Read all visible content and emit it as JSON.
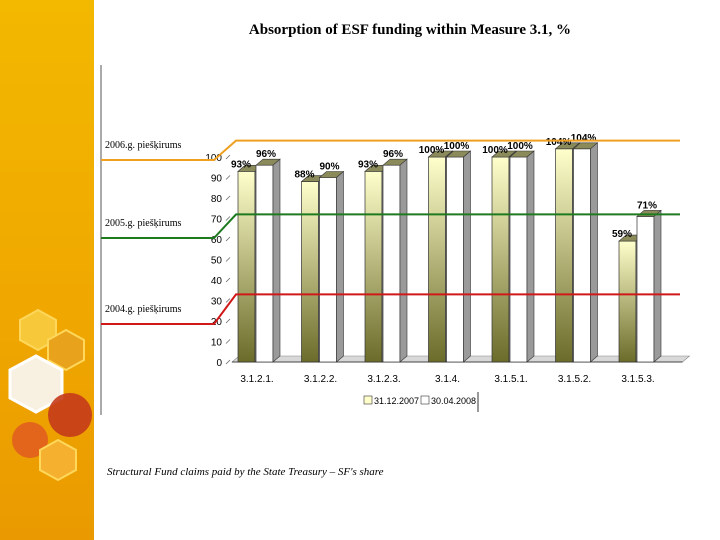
{
  "colors": {
    "band": "#f0aa00",
    "line_2006": "#f0a020",
    "line_2005": "#1e7a1e",
    "line_2004": "#d01818",
    "series_a_top": "#ffffcc",
    "series_a_bottom": "#6b6b2a",
    "series_b": "#ffffff"
  },
  "chart_data": {
    "type": "bar",
    "title": "Absorption of ESF funding within Measure 3.1, %",
    "categories": [
      "3.1.2.1.",
      "3.1.2.2.",
      "3.1.2.3.",
      "3.1.4.",
      "3.1.5.1.",
      "3.1.5.2.",
      "3.1.5.3."
    ],
    "series": [
      {
        "name": "31.12.2007",
        "values": [
          93,
          88,
          93,
          100,
          100,
          104,
          59
        ]
      },
      {
        "name": "30.04.2008",
        "values": [
          96,
          90,
          96,
          100,
          100,
          104,
          71
        ]
      }
    ],
    "value_labels": [
      [
        "93%",
        "88%",
        "93%",
        "100%",
        "100%",
        "104%",
        "59%"
      ],
      [
        "96%",
        "90%",
        "96%",
        "100%",
        "100%",
        "104%",
        "71%"
      ]
    ],
    "yticks": [
      "0",
      "10",
      "20",
      "30",
      "40",
      "50",
      "60",
      "70",
      "80",
      "90",
      "100"
    ],
    "ylim": [
      0,
      100
    ],
    "reference_lines": [
      {
        "label": "2006.g. piešķirums",
        "value": 108
      },
      {
        "label": "2005.g. piešķirums",
        "value": 72
      },
      {
        "label": "2004.g. piešķirums",
        "value": 33
      }
    ],
    "legend_position": "bottom"
  },
  "footnote": "Structural Fund claims paid by the State Treasury – SF's share"
}
